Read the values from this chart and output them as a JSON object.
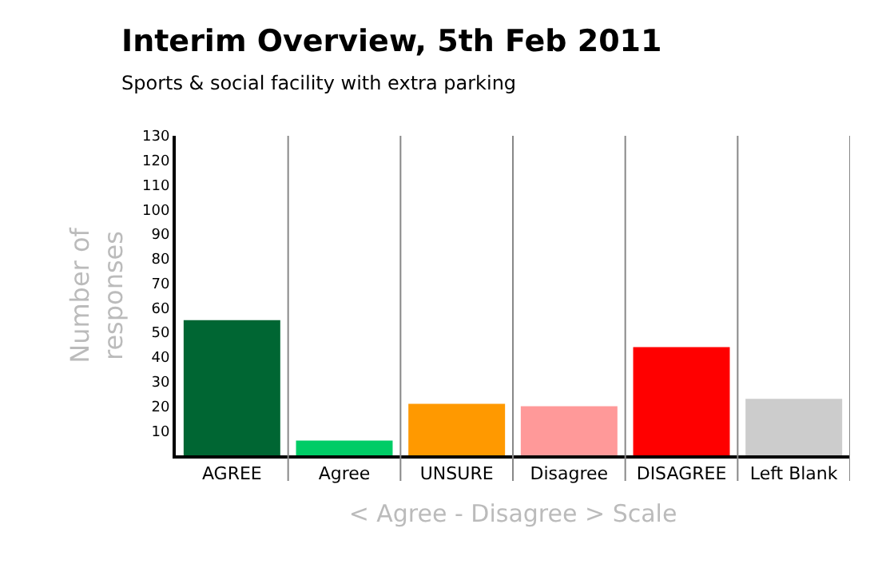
{
  "chart_data": {
    "type": "bar",
    "title": "Interim Overview, 5th Feb 2011",
    "subtitle": "Sports & social facility with extra parking",
    "xlabel": "< Agree - Disagree > Scale",
    "ylabel": "Number of\nresponses",
    "categories": [
      "AGREE",
      "Agree",
      "UNSURE",
      "Disagree",
      "DISAGREE",
      "Left Blank"
    ],
    "values": [
      55,
      6,
      21,
      20,
      44,
      23
    ],
    "colors": [
      "#006633",
      "#00cc66",
      "#ff9900",
      "#ff9999",
      "#ff0000",
      "#cccccc"
    ],
    "ylim": [
      0,
      130
    ],
    "yticks": [
      10,
      20,
      30,
      40,
      50,
      60,
      70,
      80,
      90,
      100,
      110,
      120,
      130
    ],
    "grid": "x"
  }
}
